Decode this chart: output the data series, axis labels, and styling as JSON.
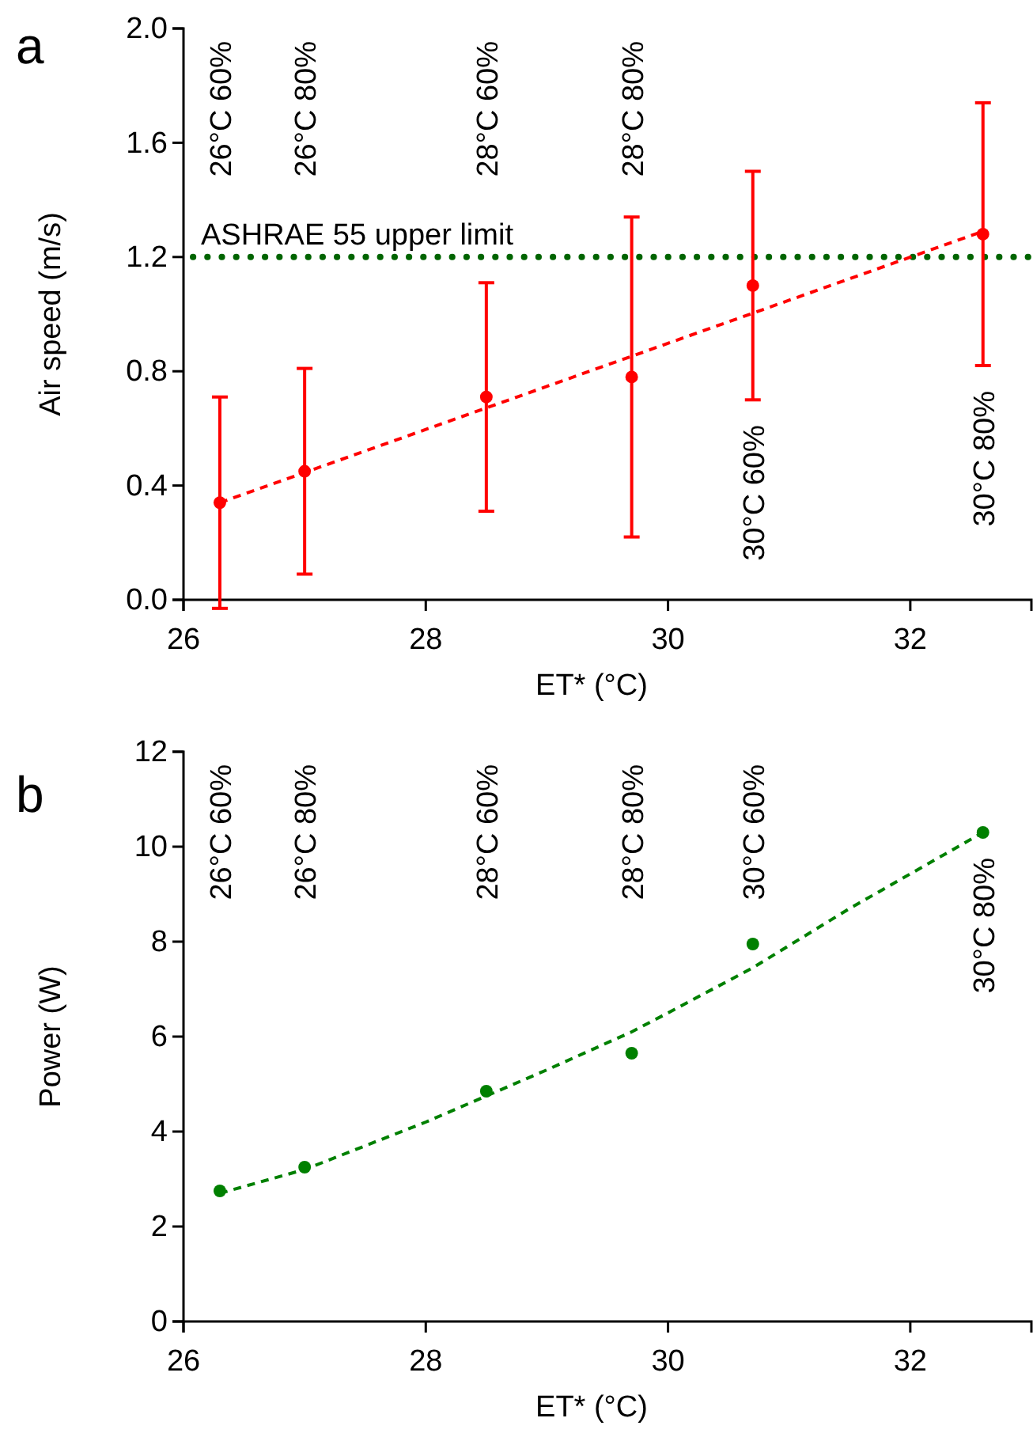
{
  "chart_data": [
    {
      "type": "scatter",
      "title": "a",
      "xlabel": "ET* (°C)",
      "ylabel": "Air speed (m/s)",
      "xlim": [
        26,
        33
      ],
      "xticks": [
        26,
        28,
        30,
        32
      ],
      "ylim": [
        0,
        2
      ],
      "yticks": [
        {
          "value": 0,
          "label": "0.0"
        },
        0.4,
        0.8,
        1.2,
        1.6,
        {
          "value": 2,
          "label": "2.0"
        }
      ],
      "grid": false,
      "series": [
        {
          "type": "scatter",
          "color": "#ff0000",
          "marker": "circle",
          "x": [
            26.3,
            27.0,
            28.5,
            29.7,
            30.7,
            32.6
          ],
          "values": [
            0.34,
            0.45,
            0.71,
            0.78,
            1.1,
            1.28
          ],
          "errors": [
            0.37,
            0.36,
            0.4,
            0.56,
            0.4,
            0.46
          ]
        },
        {
          "type": "line",
          "color": "#ff0000",
          "marker": "none",
          "line_style": "dashed",
          "x": [
            26.3,
            32.6
          ],
          "values": [
            0.34,
            1.29
          ]
        }
      ],
      "ref_lines": [
        {
          "axis": "y",
          "value": 1.2,
          "label": "ASHRAE 55 upper limit",
          "color": "#006400",
          "line_style": "dotted"
        }
      ],
      "annotations": [
        "26°C 60%",
        "26°C 80%",
        "28°C 60%",
        "28°C 80%",
        "30°C 60%",
        "30°C 80%"
      ]
    },
    {
      "type": "scatter",
      "title": "b",
      "xlabel": "ET* (°C)",
      "ylabel": "Power (W)",
      "xlim": [
        26,
        33
      ],
      "xticks": [
        26,
        28,
        30,
        32
      ],
      "ylim": [
        0,
        12
      ],
      "yticks": [
        0,
        2,
        4,
        6,
        8,
        10,
        12
      ],
      "grid": false,
      "series": [
        {
          "type": "scatter",
          "color": "#008000",
          "marker": "circle",
          "x": [
            26.3,
            27.0,
            28.5,
            29.7,
            30.7,
            32.6
          ],
          "values": [
            2.75,
            3.25,
            4.85,
            5.65,
            7.95,
            10.3
          ]
        },
        {
          "type": "line",
          "color": "#008000",
          "marker": "none",
          "line_style": "dashed",
          "x": [
            26.3,
            27,
            28,
            28.5,
            29,
            29.7,
            30,
            30.7,
            31.5,
            32.6
          ],
          "values": [
            2.7,
            3.2,
            4.2,
            4.75,
            5.3,
            6.1,
            6.5,
            7.45,
            8.7,
            10.3
          ]
        }
      ],
      "annotations": [
        "26°C 60%",
        "26°C 80%",
        "28°C 60%",
        "28°C 80%",
        "30°C 60%",
        "30°C 80%"
      ]
    }
  ]
}
